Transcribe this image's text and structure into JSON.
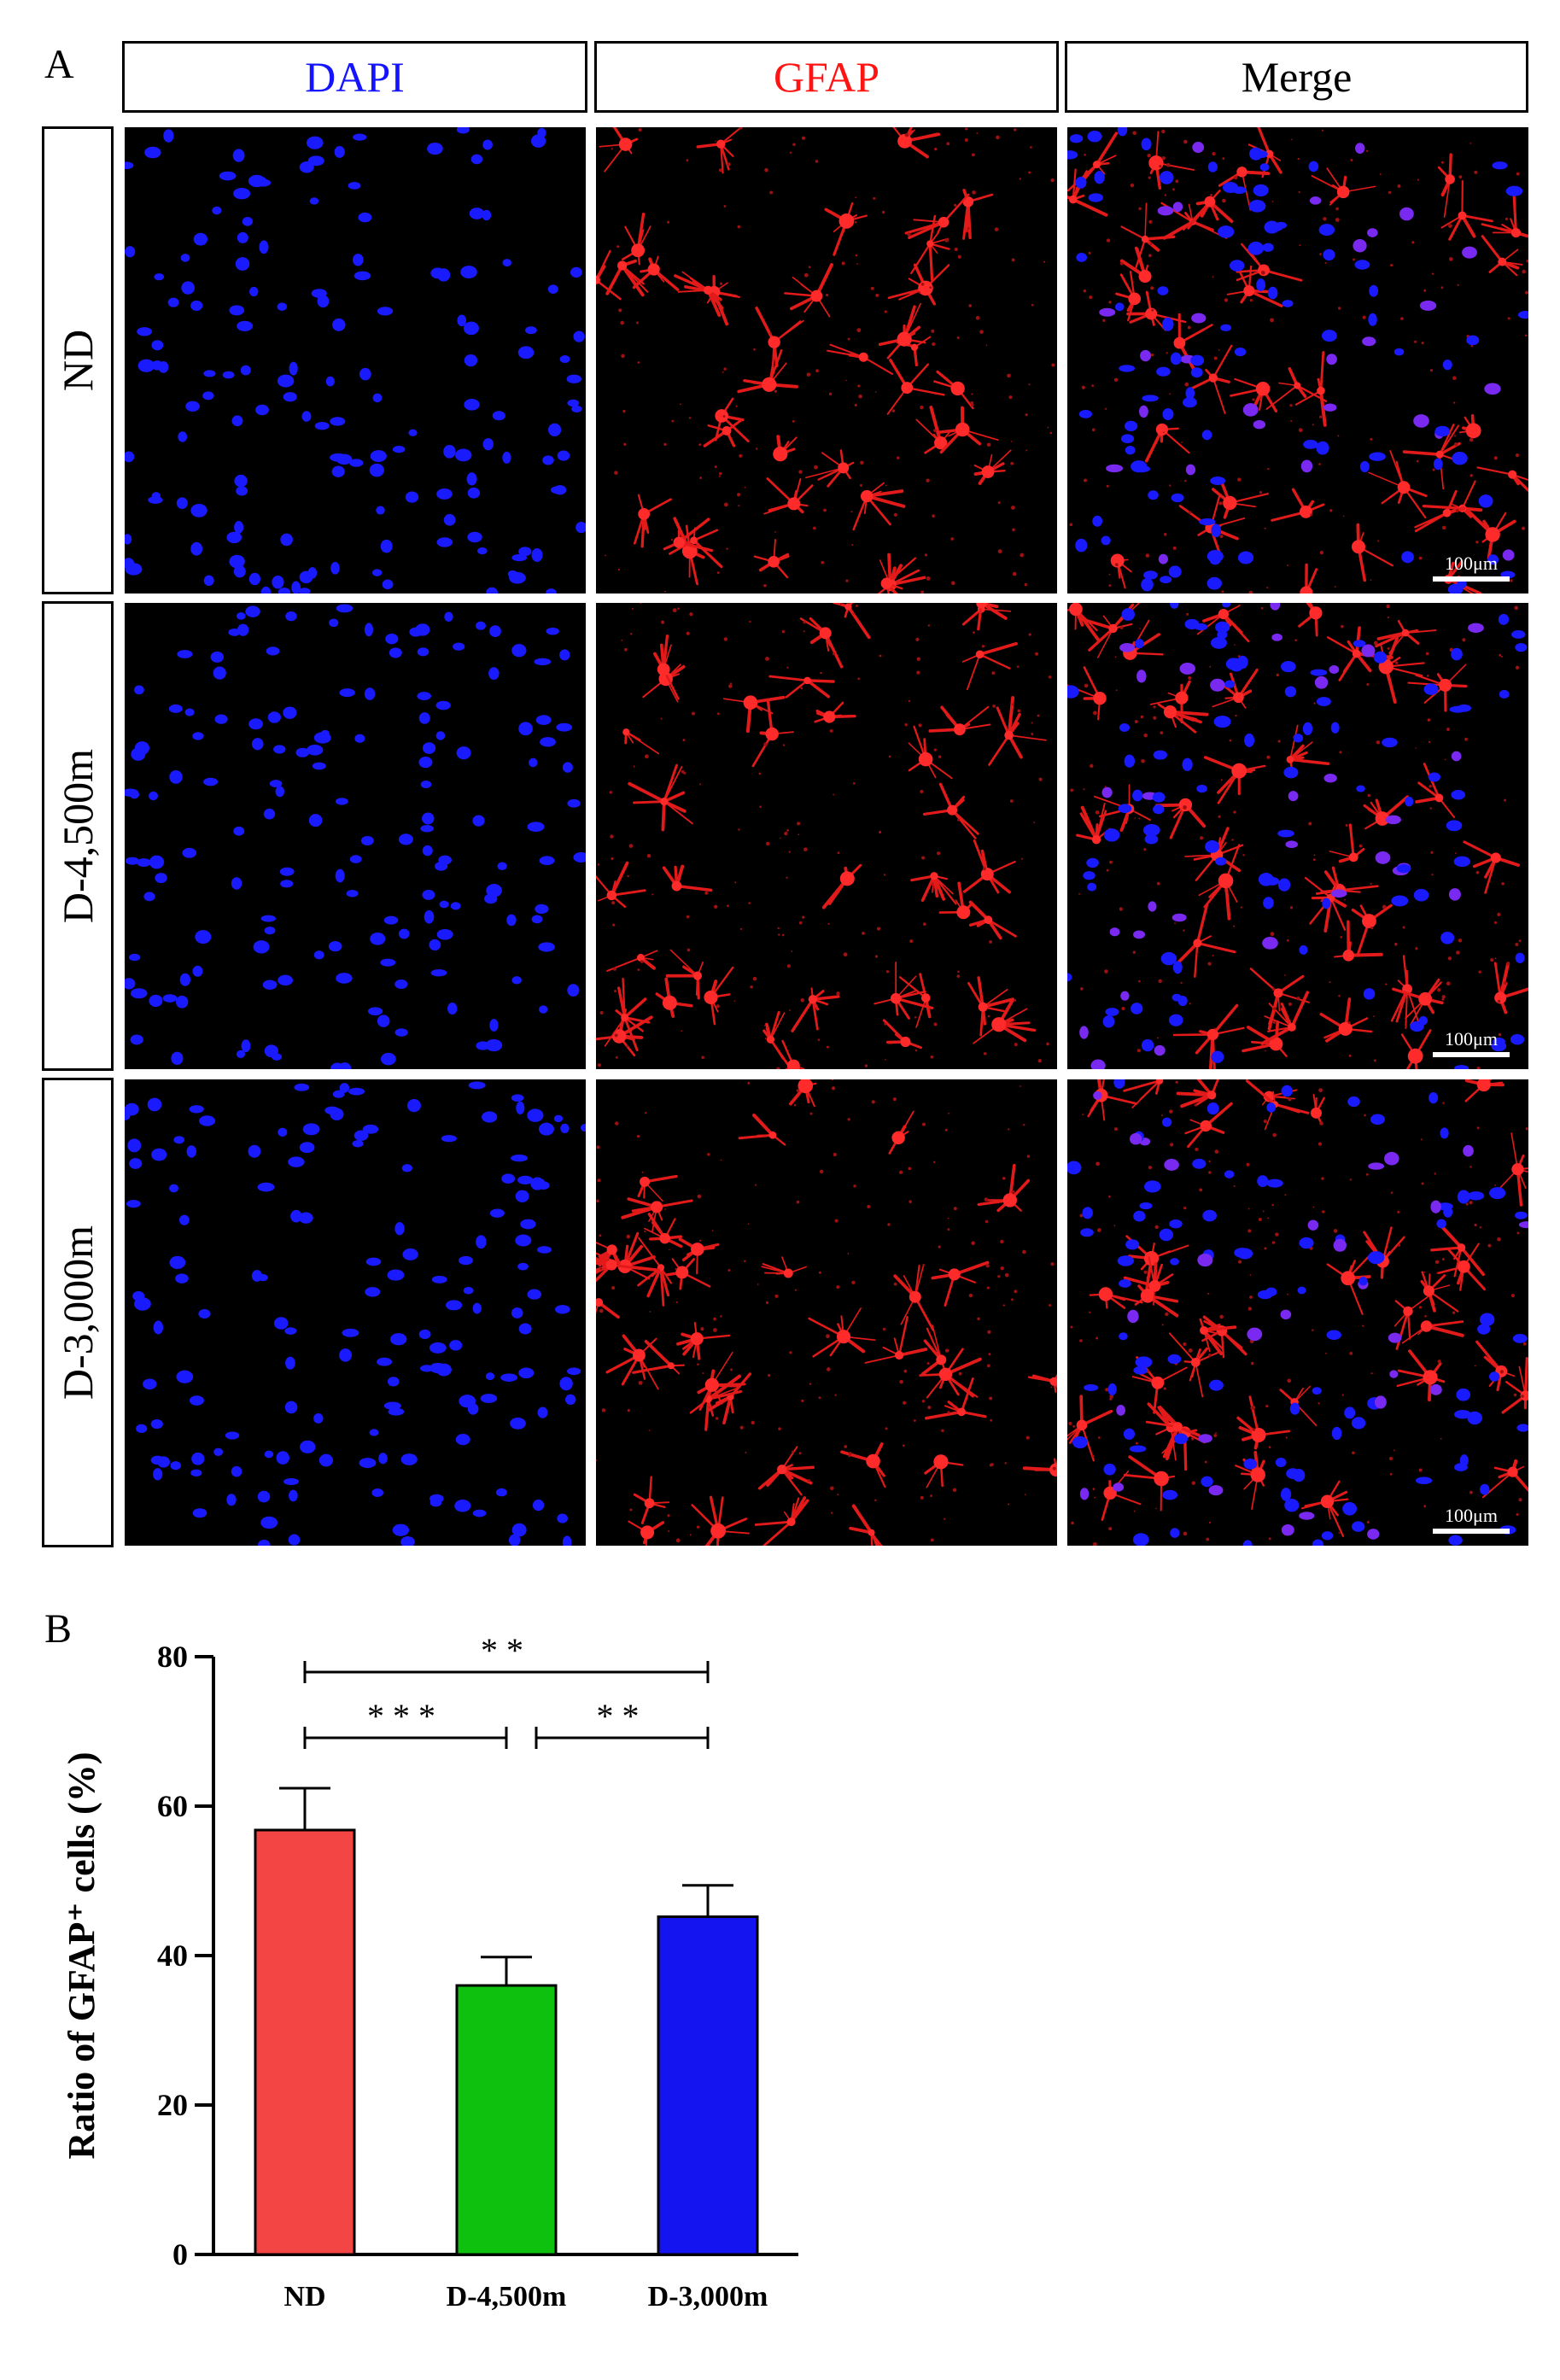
{
  "panel_a": {
    "letter": "A",
    "columns": [
      {
        "label": "DAPI",
        "color": "#1414ff"
      },
      {
        "label": "GFAP",
        "color": "#ff1414"
      },
      {
        "label": "Merge",
        "color": "#000000"
      }
    ],
    "rows": [
      {
        "label": "ND"
      },
      {
        "label": "D-4,500m"
      },
      {
        "label": "D-3,000m"
      }
    ],
    "scale_bar": "100μm"
  },
  "panel_b": {
    "letter": "B"
  },
  "chart_data": {
    "type": "bar",
    "categories": [
      "ND",
      "D-4,500m",
      "D-3,000m"
    ],
    "values": [
      56.8,
      36.0,
      45.2
    ],
    "errors": [
      5.6,
      3.8,
      4.2
    ],
    "colors": [
      "#f44545",
      "#0fc10f",
      "#1414f0"
    ],
    "ylabel": "Ratio of GFAP⁺ cells (%)",
    "xlabel": "",
    "ylim": [
      0,
      80
    ],
    "yticks": [
      0,
      20,
      40,
      60,
      80
    ],
    "grid": false,
    "significance": [
      {
        "from": "ND",
        "to": "D-3,000m",
        "label": "**"
      },
      {
        "from": "ND",
        "to": "D-4,500m",
        "label": "***"
      },
      {
        "from": "D-4,500m",
        "to": "D-3,000m",
        "label": "**"
      }
    ]
  }
}
